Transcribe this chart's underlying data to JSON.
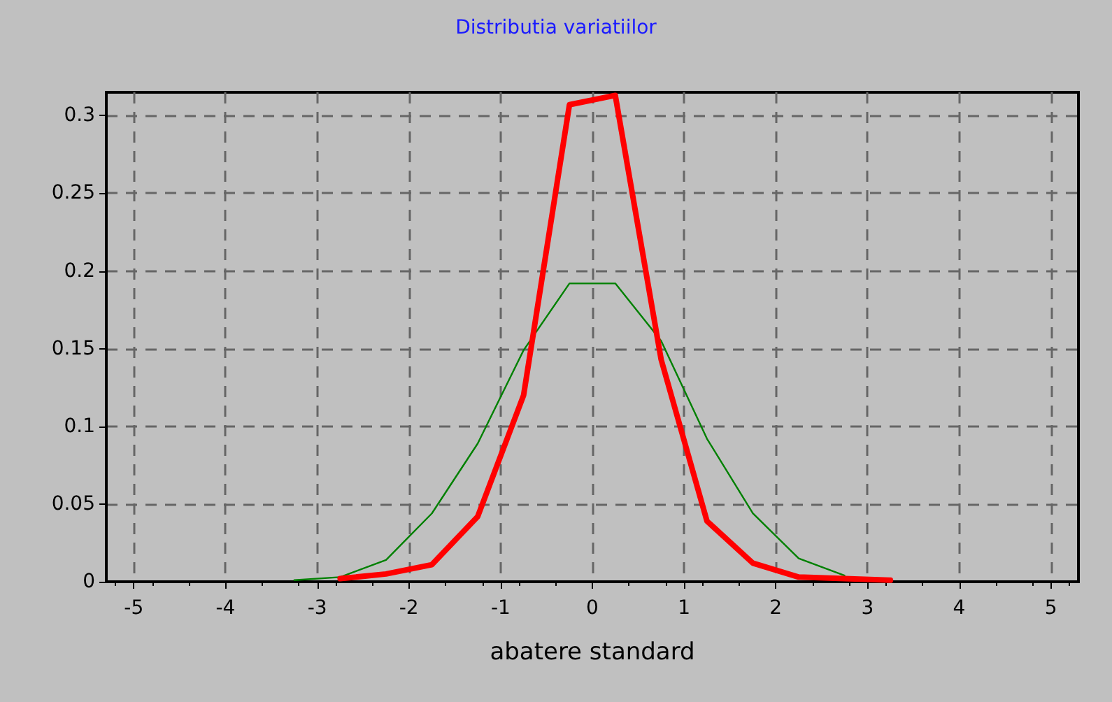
{
  "chart_data": {
    "type": "line",
    "title": "Distributia variatiilor",
    "xlabel": "abatere standard",
    "series": [
      {
        "color": "#008000",
        "x": [
          -3.25,
          -2.75,
          -2.25,
          -1.75,
          -1.25,
          -0.75,
          -0.25,
          0.25,
          0.75,
          1.25,
          1.75,
          2.25,
          2.75
        ],
        "values": [
          0.001,
          0.003,
          0.014,
          0.044,
          0.089,
          0.149,
          0.192,
          0.192,
          0.155,
          0.092,
          0.044,
          0.015,
          0.004
        ]
      },
      {
        "color": "#ff0000",
        "x": [
          -2.75,
          -2.25,
          -1.75,
          -1.25,
          -0.75,
          -0.25,
          0.25,
          0.75,
          1.25,
          1.75,
          2.25,
          2.75,
          3.25
        ],
        "values": [
          0.002,
          0.005,
          0.011,
          0.042,
          0.12,
          0.307,
          0.313,
          0.143,
          0.039,
          0.012,
          0.003,
          0.002,
          0.001
        ]
      }
    ],
    "xlim": [
      -5.3,
      5.3
    ],
    "xticks": [
      -5,
      -4,
      -3,
      -2,
      -1,
      0,
      1,
      2,
      3,
      4,
      5
    ],
    "ylim": [
      0,
      0.315
    ],
    "yticks": [
      0,
      0.05,
      0.1,
      0.15,
      0.2,
      0.25,
      0.3
    ],
    "grid": true,
    "marker": "none",
    "line_style": "solid"
  }
}
